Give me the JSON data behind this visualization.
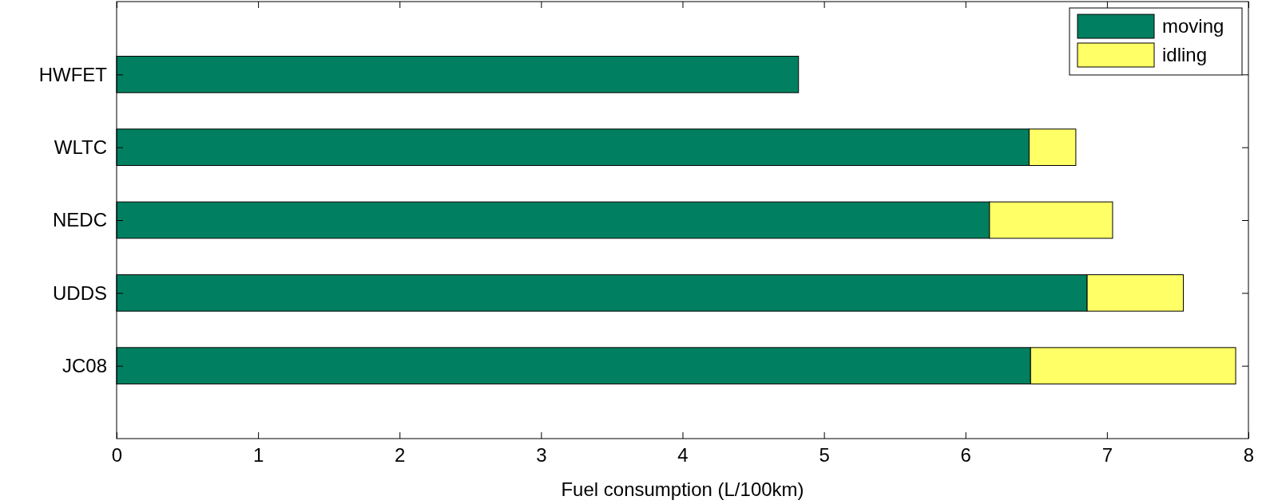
{
  "chart_data": {
    "type": "bar",
    "orientation": "horizontal",
    "stacked": true,
    "xlabel": "Fuel consumption (L/100km)",
    "categories": [
      "HWFET",
      "WLTC",
      "NEDC",
      "UDDS",
      "JC08"
    ],
    "series": [
      {
        "name": "moving",
        "color": "#008060",
        "values": [
          4.82,
          6.45,
          6.17,
          6.86,
          6.46
        ]
      },
      {
        "name": "idling",
        "color": "#ffff66",
        "values": [
          0,
          0.33,
          0.87,
          0.68,
          1.45
        ]
      }
    ],
    "xlim": [
      0,
      8
    ],
    "xticks": [
      0,
      1,
      2,
      3,
      4,
      5,
      6,
      7,
      8
    ],
    "grid": false,
    "legend": "top right"
  }
}
